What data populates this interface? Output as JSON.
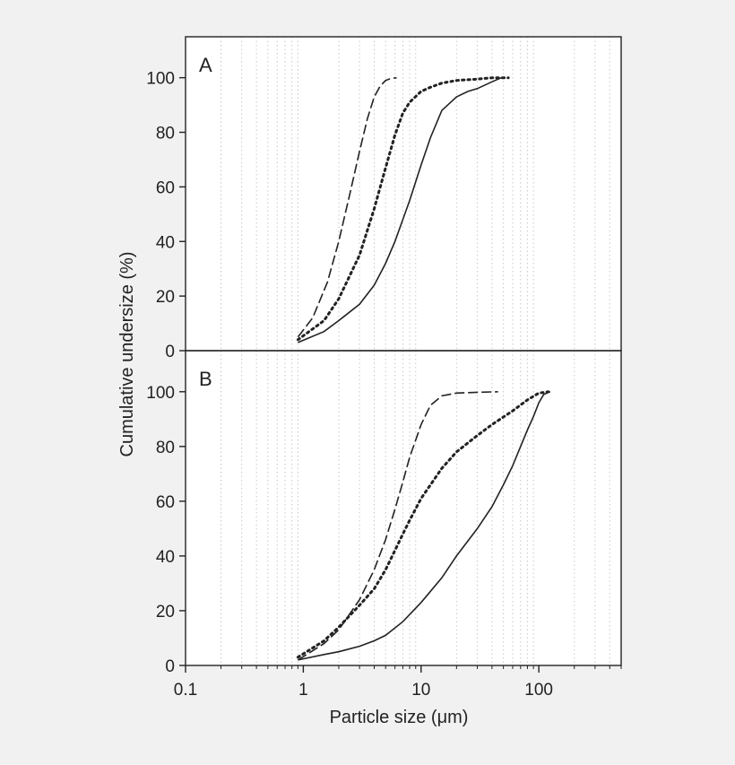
{
  "chart_data": {
    "type": "line",
    "xlabel": "Particle size (μm)",
    "ylabel": "Cumulative undersize (%)",
    "x_scale": "log",
    "xlim": [
      0.1,
      500
    ],
    "ylim": [
      0,
      115
    ],
    "x_ticks": [
      0.1,
      1,
      10,
      100
    ],
    "x_tick_labels": [
      "0.1",
      "1",
      "10",
      "100"
    ],
    "y_ticks": [
      0,
      20,
      40,
      60,
      80,
      100
    ],
    "y_tick_labels": [
      "0",
      "20",
      "40",
      "60",
      "80",
      "100"
    ],
    "grid": "vertical dotted lines at log minor ticks",
    "colors": {
      "line": "#222222",
      "grid": "#c8c8c8",
      "frame": "#222222",
      "plot_bg": "#ffffff"
    },
    "panels": [
      {
        "label": "A",
        "series": [
          {
            "style": "dashed",
            "x": [
              0.9,
              1.2,
              1.6,
              2.0,
              2.5,
              3.0,
              3.5,
              4.0,
              4.5,
              5.0,
              5.5,
              6.2
            ],
            "y": [
              5,
              12,
              25,
              40,
              58,
              73,
              85,
              93,
              97,
              99,
              99.7,
              100
            ]
          },
          {
            "style": "dotted",
            "x": [
              0.9,
              1.5,
              2.0,
              3.0,
              4.0,
              5.0,
              6.0,
              7.0,
              8.0,
              10,
              12,
              15,
              20,
              30,
              40,
              55
            ],
            "y": [
              4,
              11,
              19,
              35,
              52,
              67,
              79,
              87,
              91,
              95,
              96.5,
              98,
              99,
              99.5,
              100,
              100
            ]
          },
          {
            "style": "solid",
            "x": [
              0.9,
              1.5,
              2.0,
              3.0,
              4.0,
              5.0,
              6.0,
              7.0,
              8.0,
              10,
              12,
              15,
              20,
              25,
              30,
              40,
              48
            ],
            "y": [
              3,
              7,
              11,
              17,
              24,
              32,
              40,
              48,
              55,
              68,
              78,
              88,
              93,
              95,
              96,
              98.5,
              100
            ]
          }
        ]
      },
      {
        "label": "B",
        "series": [
          {
            "style": "dashed",
            "x": [
              0.9,
              1.5,
              2.0,
              3.0,
              4.0,
              5.0,
              6.0,
              7.0,
              8.0,
              10,
              12,
              15,
              20,
              30,
              45
            ],
            "y": [
              2,
              8,
              13,
              24,
              35,
              46,
              57,
              67,
              76,
              88,
              95,
              98.5,
              99.5,
              99.8,
              100
            ]
          },
          {
            "style": "dotted",
            "x": [
              0.9,
              1.5,
              2.0,
              3.0,
              4.0,
              5.0,
              6.0,
              7.0,
              8.0,
              10,
              15,
              20,
              30,
              40,
              60,
              80,
              100,
              120
            ],
            "y": [
              3,
              9,
              14,
              22,
              28,
              35,
              42,
              48,
              53,
              61,
              72,
              78,
              84,
              88,
              93,
              97,
              99.5,
              100
            ]
          },
          {
            "style": "solid",
            "x": [
              0.9,
              1.5,
              2.0,
              3.0,
              4.0,
              5.0,
              7.0,
              10,
              15,
              20,
              30,
              40,
              50,
              60,
              70,
              80,
              90,
              100,
              110,
              125
            ],
            "y": [
              2,
              4,
              5,
              7,
              9,
              11,
              16,
              23,
              32,
              40,
              50,
              58,
              66,
              73,
              80,
              86,
              91,
              96,
              99,
              100
            ]
          }
        ]
      }
    ]
  }
}
